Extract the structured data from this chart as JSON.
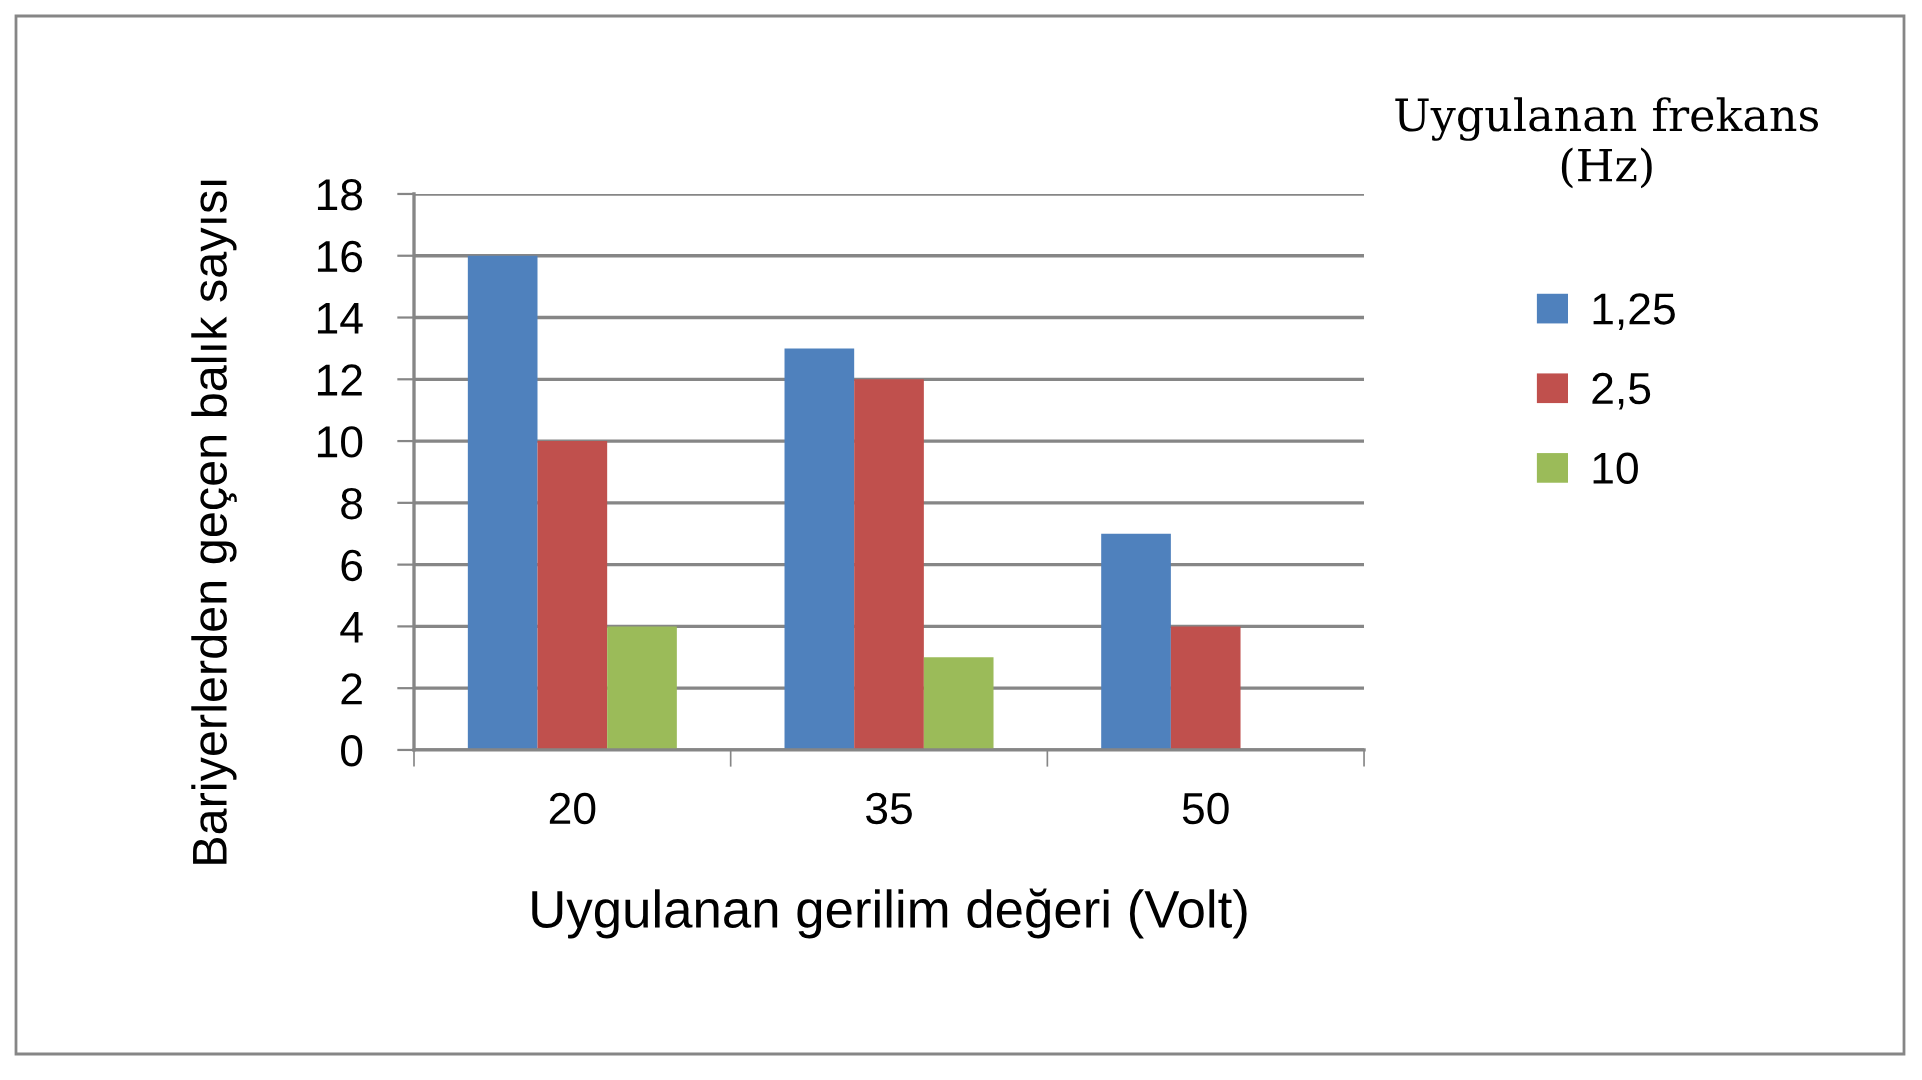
{
  "chart_data": {
    "type": "bar",
    "xlabel": "Uygulanan gerilim değeri (Volt)",
    "ylabel": "Bariyerlerden geçen balık sayısı",
    "legend_title": "Uygulanan frekans (Hz)",
    "categories": [
      "20",
      "35",
      "50"
    ],
    "series": [
      {
        "name": "1,25",
        "color": "#4f81bd",
        "values": [
          16,
          13,
          7
        ]
      },
      {
        "name": "2,5",
        "color": "#c0504d",
        "values": [
          10,
          12,
          4
        ]
      },
      {
        "name": "10",
        "color": "#9bbb59",
        "values": [
          4,
          3,
          0
        ]
      }
    ],
    "ylim": [
      0,
      18
    ],
    "yticks": [
      0,
      2,
      4,
      6,
      8,
      10,
      12,
      14,
      16,
      18
    ],
    "grid": "y",
    "legend": "top right"
  }
}
